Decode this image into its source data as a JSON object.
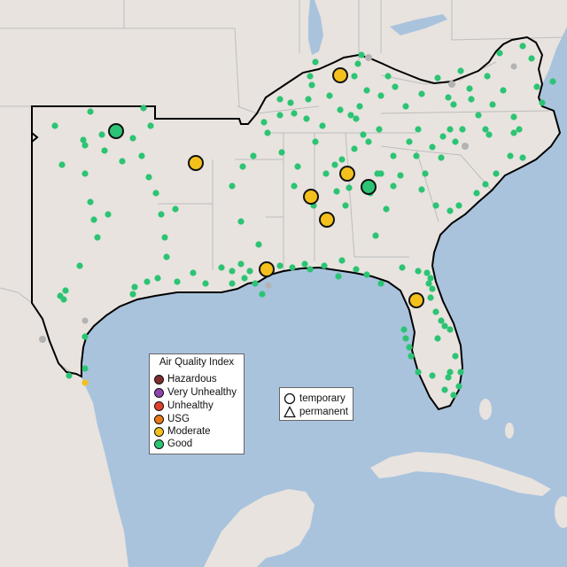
{
  "legend": {
    "title": "Air Quality Index",
    "categories": [
      {
        "label": "Hazardous",
        "color": "#7e2e2e"
      },
      {
        "label": "Very Unhealthy",
        "color": "#8f44ad"
      },
      {
        "label": "Unhealthy",
        "color": "#e2402c"
      },
      {
        "label": "USG",
        "color": "#e77817"
      },
      {
        "label": "Moderate",
        "color": "#f4c01b"
      },
      {
        "label": "Good",
        "color": "#2cc474"
      }
    ]
  },
  "monitor_types": [
    {
      "label": "temporary",
      "shape": "circle-icon"
    },
    {
      "label": "permanent",
      "shape": "triangle-icon"
    }
  ],
  "colors": {
    "ocean": "#a9c3dd",
    "land": "#e8e3de",
    "border_outline": "#000000",
    "state_lines": "#bdbdbd"
  }
}
